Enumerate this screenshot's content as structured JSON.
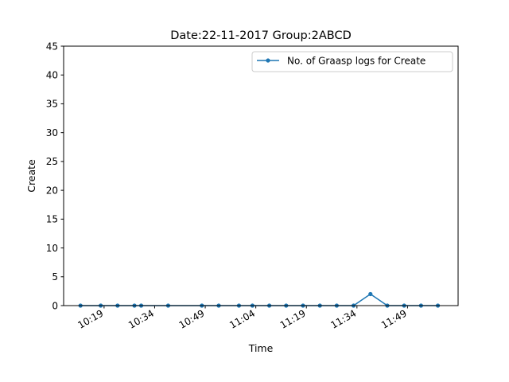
{
  "chart_data": {
    "type": "line",
    "title": "Date:22-11-2017  Group:2ABCD",
    "xlabel": "Time",
    "ylabel": "Create",
    "x_tick_labels": [
      "10:19",
      "10:34",
      "10:49",
      "11:04",
      "11:19",
      "11:34",
      "11:49"
    ],
    "x_tick_minutes": [
      619,
      634,
      649,
      664,
      679,
      694,
      709
    ],
    "xlim_minutes": [
      607,
      724
    ],
    "y_ticks": [
      0,
      5,
      10,
      15,
      20,
      25,
      30,
      35,
      40,
      45
    ],
    "ylim": [
      0,
      45
    ],
    "grid": false,
    "legend_position": "upper right",
    "series": [
      {
        "name": "No. of Graasp logs for Create",
        "color": "#1f77b4",
        "marker": "point",
        "x_minutes": [
          612,
          618,
          623,
          628,
          630,
          638,
          648,
          653,
          659,
          663,
          668,
          673,
          678,
          683,
          688,
          693,
          698,
          703,
          708,
          713,
          718
        ],
        "values": [
          0,
          0,
          0,
          0,
          0,
          0,
          0,
          0,
          0,
          0,
          0,
          0,
          0,
          0,
          0,
          0,
          2,
          0,
          0,
          0,
          0
        ]
      }
    ]
  }
}
